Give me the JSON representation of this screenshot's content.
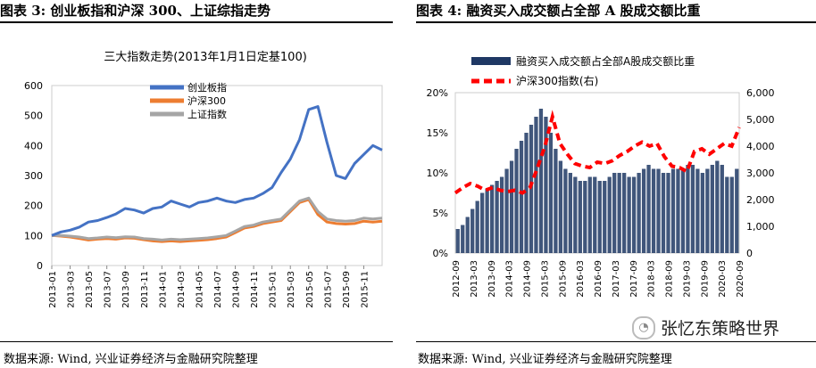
{
  "left_panel": {
    "header": "图表 3:  创业板指和沪深 300、上证综指走势",
    "source": "数据来源:  Wind, 兴业证券经济与金融研究院整理"
  },
  "right_panel": {
    "header": "图表 4:  融资买入成交额占全部 A 股成交额比重",
    "source": "数据来源:  Wind, 兴业证券经济与金融研究院整理"
  },
  "watermark": "张忆东策略世界",
  "chart_data": [
    {
      "type": "line",
      "title": "三大指数走势(2013年1月1日定基100)",
      "xlabel": "",
      "ylabel": "",
      "ylim": [
        0,
        600
      ],
      "yticks": [
        "0",
        "100",
        "200",
        "300",
        "400",
        "500",
        "600"
      ],
      "x_tick_labels": [
        "2013-01",
        "2013-03",
        "2013-05",
        "2013-07",
        "2013-09",
        "2013-11",
        "2014-01",
        "2014-03",
        "2014-05",
        "2014-07",
        "2014-09",
        "2014-11",
        "2015-01",
        "2015-03",
        "2015-05",
        "2015-07",
        "2015-09",
        "2015-11"
      ],
      "x_month_index": [
        0,
        1,
        2,
        3,
        4,
        5,
        6,
        7,
        8,
        9,
        10,
        11,
        12,
        13,
        14,
        15,
        16,
        17,
        18,
        19,
        20,
        21,
        22,
        23,
        24,
        25,
        26,
        27,
        28,
        29,
        30,
        31,
        32,
        33,
        34,
        35,
        36
      ],
      "legend_position": "top-center",
      "series": [
        {
          "name": "创业板指",
          "color": "#4472C4",
          "values": [
            100,
            112,
            118,
            128,
            145,
            150,
            160,
            172,
            190,
            185,
            175,
            190,
            195,
            215,
            205,
            195,
            210,
            215,
            225,
            215,
            210,
            220,
            225,
            240,
            260,
            310,
            355,
            420,
            520,
            530,
            410,
            300,
            290,
            340,
            370,
            400,
            385
          ]
        },
        {
          "name": "沪深300",
          "color": "#ED7D31",
          "values": [
            100,
            98,
            95,
            90,
            85,
            88,
            90,
            88,
            92,
            91,
            86,
            82,
            80,
            82,
            80,
            82,
            84,
            86,
            90,
            95,
            110,
            125,
            130,
            140,
            145,
            150,
            180,
            210,
            220,
            170,
            145,
            140,
            138,
            140,
            148,
            145,
            148
          ]
        },
        {
          "name": "上证指数",
          "color": "#A5A5A5",
          "values": [
            100,
            100,
            98,
            95,
            90,
            92,
            95,
            93,
            96,
            95,
            90,
            88,
            85,
            88,
            86,
            88,
            90,
            92,
            96,
            100,
            115,
            130,
            135,
            145,
            150,
            155,
            185,
            215,
            225,
            180,
            155,
            150,
            148,
            150,
            158,
            155,
            158
          ]
        }
      ]
    },
    {
      "type": "bar",
      "title": "",
      "xlabel": "",
      "ylabel": "",
      "ylim": [
        0,
        20
      ],
      "y2lim": [
        0,
        6000
      ],
      "yticks_left": [
        "0%",
        "5%",
        "10%",
        "15%",
        "20%"
      ],
      "yticks_right": [
        "0",
        "1,000",
        "2,000",
        "3,000",
        "4,000",
        "5,000",
        "6,000"
      ],
      "x_tick_labels": [
        "2012-09",
        "2013-03",
        "2013-09",
        "2014-03",
        "2014-09",
        "2015-03",
        "2015-09",
        "2016-03",
        "2016-09",
        "2017-03",
        "2017-09",
        "2018-03",
        "2018-09",
        "2019-03",
        "2019-09",
        "2020-03",
        "2020-09"
      ],
      "legend_position": "top",
      "series": [
        {
          "name": "融资买入成交额占全部A股成交额比重",
          "color": "#1F3864",
          "axis": "left",
          "values": [
            3,
            3.5,
            4.5,
            5.5,
            6.5,
            7.5,
            8,
            8.5,
            9,
            9.5,
            10.5,
            11.5,
            13,
            14,
            15,
            16,
            17,
            18,
            17,
            15,
            13,
            11.5,
            10.5,
            10,
            9.5,
            9,
            9,
            9.5,
            9.5,
            9,
            9,
            9.5,
            10,
            10,
            10,
            9.5,
            9.5,
            10,
            10.5,
            11,
            10.5,
            10.5,
            10,
            10,
            10.5,
            10.5,
            10.5,
            11,
            11,
            10.5,
            10,
            10.5,
            11,
            11.5,
            11,
            9.5,
            9.5,
            10.5
          ]
        },
        {
          "name": "沪深300指数(右)",
          "color": "#FF0000",
          "axis": "right",
          "values": [
            2250,
            2450,
            2600,
            2500,
            2350,
            2450,
            2350,
            2300,
            2350,
            2250,
            2450,
            3200,
            4000,
            5100,
            4100,
            3700,
            3350,
            3250,
            3200,
            3400,
            3350,
            3450,
            3650,
            3800,
            4000,
            4150,
            4000,
            4100,
            3600,
            3250,
            3200,
            3050,
            3800,
            3900,
            3700,
            3900,
            4100,
            4000,
            4700
          ]
        }
      ]
    }
  ]
}
